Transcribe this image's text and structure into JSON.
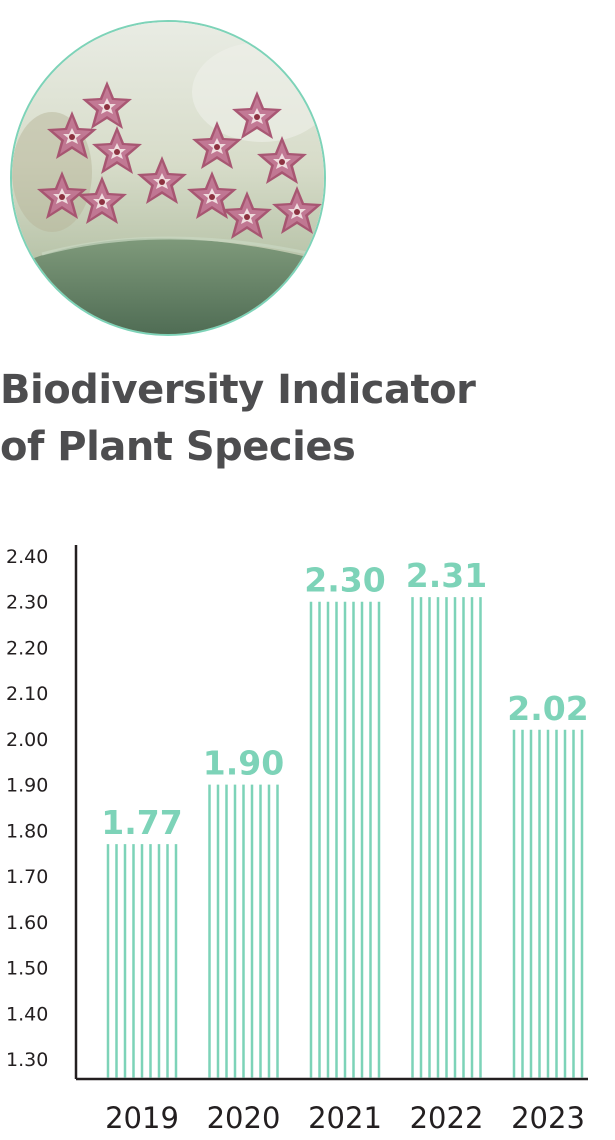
{
  "title_lines": [
    "Biodiversity Indicator",
    "of Plant Species"
  ],
  "colors": {
    "accent": "#7dd3b8",
    "title": "#4d4d4f",
    "axis": "#231f20"
  },
  "chart_data": {
    "type": "bar",
    "title": "Biodiversity Indicator of Plant Species",
    "categories": [
      "2019",
      "2020",
      "2021",
      "2022",
      "2023"
    ],
    "values": [
      1.77,
      1.9,
      2.3,
      2.31,
      2.02
    ],
    "value_labels": [
      "1.77",
      "1.90",
      "2.30",
      "2.31",
      "2.02"
    ],
    "yticks": [
      "1.30",
      "1.40",
      "1.50",
      "1.60",
      "1.70",
      "1.80",
      "1.90",
      "2.00",
      "2.10",
      "2.20",
      "2.30",
      "2.40"
    ],
    "ylim": [
      1.3,
      2.4
    ],
    "xlabel": "",
    "ylabel": "",
    "grid": false,
    "legend": "none",
    "bar_style": "vertical stripes"
  }
}
